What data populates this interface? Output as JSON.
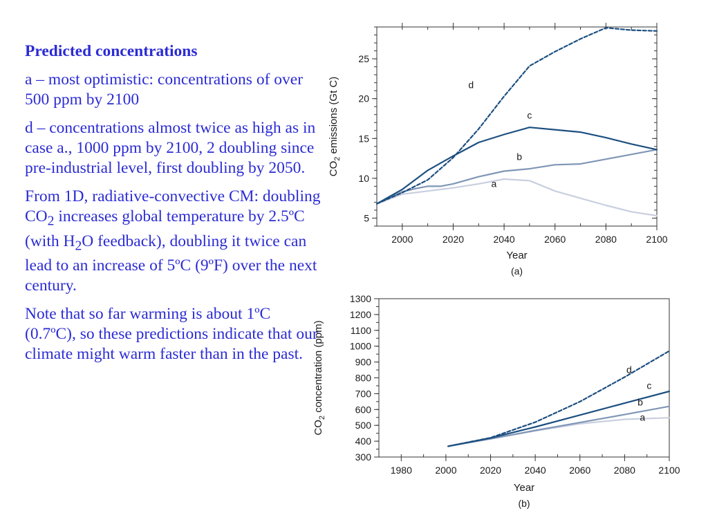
{
  "text": {
    "heading": "Predicted concentrations",
    "p1": "a – most optimistic: concentrations of over 500 ppm by 2100",
    "p2": "d – concentrations almost twice as high as in case a., 1000 ppm by 2100, 2 doubling since pre-industrial level, first doubling by 2050.",
    "p3_a": "From 1D, radiative-convective CM: doubling CO",
    "p3_sub1": "2",
    "p3_b": " increases global temperature by 2.5ºC (with H",
    "p3_sub2": "2",
    "p3_c": "O feedback), doubling it twice can lead to an increase of 5ºC (9ºF) over the next century.",
    "p4": "Note that so far warming is about 1ºC (0.7ºC), so these predictions indicate that our climate might warm faster than in the past."
  },
  "chart_data": [
    {
      "type": "line",
      "panel": "(a)",
      "xlabel": "Year",
      "ylabel_main": "CO",
      "ylabel_sub": "2",
      "ylabel_rest": " emissions (Gt C)",
      "xlim": [
        1990,
        2100
      ],
      "ylim": [
        4,
        29
      ],
      "xticks": [
        2000,
        2020,
        2040,
        2060,
        2080,
        2100
      ],
      "yticks": [
        5,
        10,
        15,
        20,
        25
      ],
      "colors": {
        "a": "#c9cfe0",
        "b": "#7f96b6",
        "c": "#1c4f80",
        "d": "#1c4f80"
      },
      "series": [
        {
          "name": "a",
          "dashed": false,
          "x": [
            1990,
            2000,
            2010,
            2020,
            2030,
            2040,
            2050,
            2060,
            2070,
            2080,
            2090,
            2100
          ],
          "y": [
            6.8,
            8.0,
            8.4,
            8.8,
            9.3,
            9.9,
            9.7,
            8.4,
            7.5,
            6.6,
            5.8,
            5.3
          ]
        },
        {
          "name": "b",
          "dashed": false,
          "x": [
            1990,
            2000,
            2005,
            2010,
            2015,
            2020,
            2030,
            2040,
            2050,
            2060,
            2070,
            2080,
            2090,
            2100
          ],
          "y": [
            6.8,
            8.3,
            8.7,
            9.0,
            9.0,
            9.3,
            10.2,
            10.9,
            11.2,
            11.7,
            11.8,
            12.4,
            13.0,
            13.6
          ]
        },
        {
          "name": "c",
          "dashed": false,
          "x": [
            1990,
            2000,
            2010,
            2020,
            2030,
            2040,
            2050,
            2060,
            2070,
            2080,
            2090,
            2100
          ],
          "y": [
            6.8,
            8.6,
            11.0,
            12.8,
            14.5,
            15.5,
            16.4,
            16.1,
            15.8,
            15.1,
            14.3,
            13.6
          ]
        },
        {
          "name": "d",
          "dashed": true,
          "x": [
            1990,
            2000,
            2010,
            2020,
            2030,
            2040,
            2050,
            2060,
            2070,
            2080,
            2090,
            2100
          ],
          "y": [
            6.8,
            8.2,
            9.8,
            12.6,
            16.2,
            20.3,
            24.1,
            25.9,
            27.5,
            28.9,
            28.6,
            28.5
          ]
        }
      ],
      "labels": [
        {
          "name": "a",
          "x": 2036,
          "y": 8.9
        },
        {
          "name": "b",
          "x": 2046,
          "y": 12.3
        },
        {
          "name": "c",
          "x": 2050,
          "y": 17.5
        },
        {
          "name": "d",
          "x": 2027,
          "y": 21.3
        }
      ]
    },
    {
      "type": "line",
      "panel": "(b)",
      "xlabel": "Year",
      "ylabel_main": "CO",
      "ylabel_sub": "2",
      "ylabel_rest": " concentration (ppm)",
      "xlim": [
        1970,
        2100
      ],
      "ylim": [
        300,
        1300
      ],
      "xticks": [
        1980,
        2000,
        2020,
        2040,
        2060,
        2080,
        2100
      ],
      "yticks": [
        300,
        400,
        500,
        600,
        700,
        800,
        900,
        1000,
        1100,
        1200,
        1300
      ],
      "colors": {
        "a": "#c9cfe0",
        "b": "#7f96b6",
        "c": "#1c4f80",
        "d": "#1c4f80"
      },
      "series": [
        {
          "name": "a",
          "dashed": false,
          "x": [
            2001,
            2020,
            2040,
            2060,
            2080,
            2100
          ],
          "y": [
            368,
            415,
            465,
            510,
            538,
            548
          ]
        },
        {
          "name": "b",
          "dashed": false,
          "x": [
            2001,
            2020,
            2040,
            2060,
            2080,
            2100
          ],
          "y": [
            368,
            415,
            468,
            518,
            568,
            620
          ]
        },
        {
          "name": "c",
          "dashed": false,
          "x": [
            2001,
            2020,
            2040,
            2060,
            2080,
            2100
          ],
          "y": [
            368,
            420,
            490,
            565,
            640,
            715
          ]
        },
        {
          "name": "d",
          "dashed": true,
          "x": [
            2001,
            2020,
            2040,
            2060,
            2080,
            2100
          ],
          "y": [
            368,
            422,
            520,
            650,
            805,
            970
          ]
        }
      ],
      "labels": [
        {
          "name": "a",
          "x": 2088,
          "y": 530
        },
        {
          "name": "b",
          "x": 2087,
          "y": 625
        },
        {
          "name": "c",
          "x": 2091,
          "y": 730
        },
        {
          "name": "d",
          "x": 2082,
          "y": 830
        }
      ]
    }
  ]
}
